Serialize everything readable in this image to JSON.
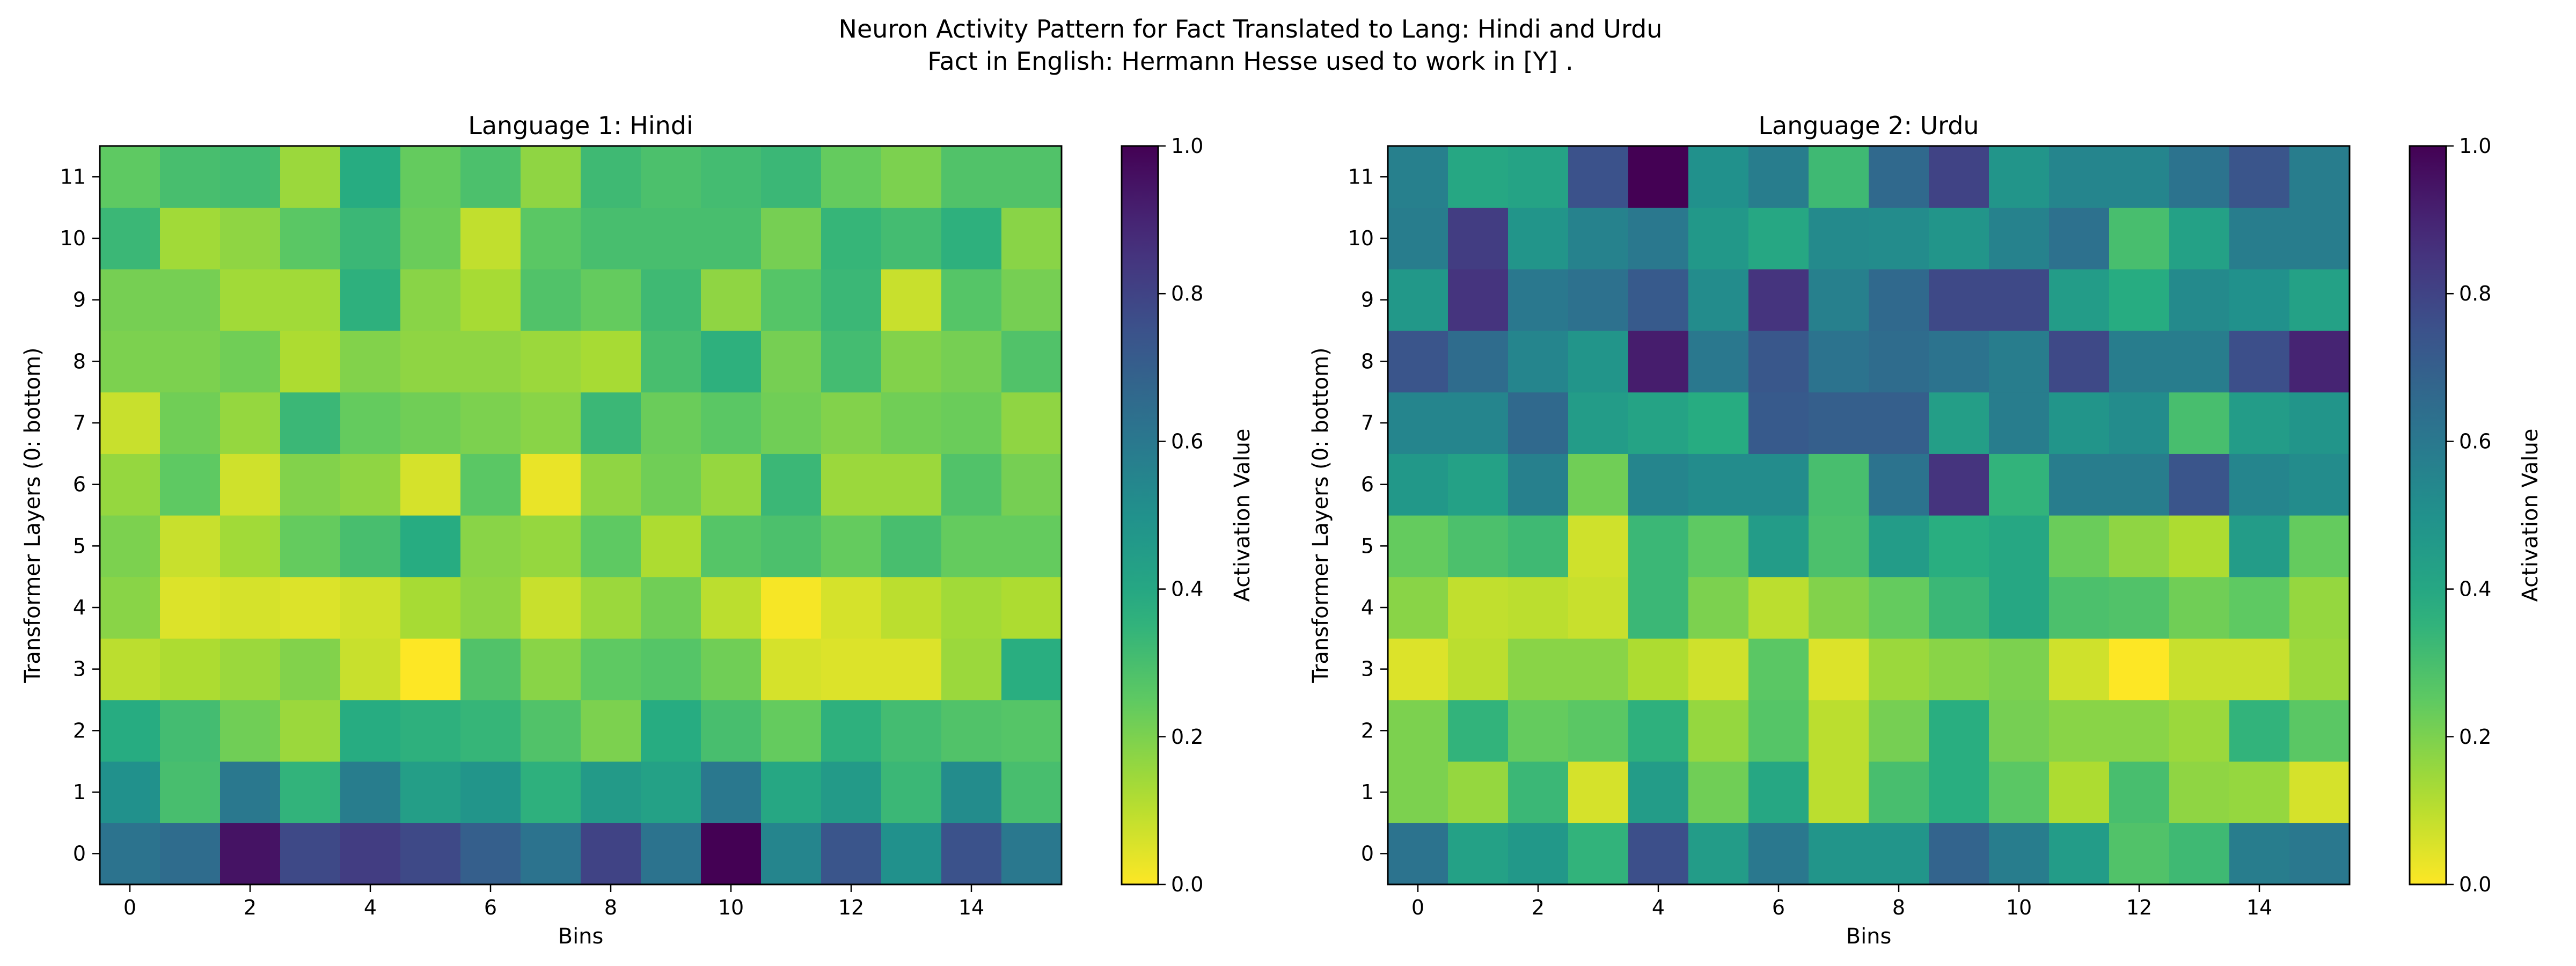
{
  "chart_data": {
    "type": "heatmap",
    "title": "Neuron Activity Pattern for Fact Translated to Lang: Hindi and Urdu",
    "subtitle": "Fact in English: Hermann Hesse used to work in [Y] .",
    "colormap": "viridis_r",
    "colorbar_label": "Activation Value",
    "colorbar_range": [
      0,
      1
    ],
    "colorbar_ticks": [
      "0.0",
      "0.2",
      "0.4",
      "0.6",
      "0.8",
      "1.0"
    ],
    "xlabel": "Bins",
    "ylabel": "Transformer Layers (0: bottom)",
    "x_ticks": [
      "0",
      "2",
      "4",
      "6",
      "8",
      "10",
      "12",
      "14"
    ],
    "y_ticks": [
      "0",
      "1",
      "2",
      "3",
      "4",
      "5",
      "6",
      "7",
      "8",
      "9",
      "10",
      "11"
    ],
    "panels": [
      {
        "title": "Language 1: Hindi",
        "values": [
          [
            0.62,
            0.65,
            0.95,
            0.78,
            0.82,
            0.78,
            0.7,
            0.62,
            0.8,
            0.62,
            1.0,
            0.55,
            0.74,
            0.5,
            0.75,
            0.6
          ],
          [
            0.5,
            0.3,
            0.6,
            0.35,
            0.58,
            0.44,
            0.48,
            0.36,
            0.46,
            0.43,
            0.6,
            0.4,
            0.46,
            0.33,
            0.52,
            0.3
          ],
          [
            0.38,
            0.31,
            0.22,
            0.15,
            0.38,
            0.36,
            0.34,
            0.28,
            0.2,
            0.38,
            0.3,
            0.24,
            0.36,
            0.31,
            0.28,
            0.27
          ],
          [
            0.1,
            0.12,
            0.15,
            0.19,
            0.08,
            0.0,
            0.28,
            0.18,
            0.25,
            0.27,
            0.22,
            0.06,
            0.05,
            0.05,
            0.15,
            0.37
          ],
          [
            0.18,
            0.05,
            0.06,
            0.05,
            0.07,
            0.13,
            0.17,
            0.08,
            0.15,
            0.22,
            0.1,
            0.01,
            0.06,
            0.1,
            0.14,
            0.12
          ],
          [
            0.2,
            0.08,
            0.14,
            0.24,
            0.3,
            0.38,
            0.18,
            0.16,
            0.25,
            0.12,
            0.27,
            0.29,
            0.24,
            0.3,
            0.24,
            0.24
          ],
          [
            0.16,
            0.25,
            0.07,
            0.19,
            0.17,
            0.06,
            0.26,
            0.03,
            0.17,
            0.22,
            0.16,
            0.33,
            0.15,
            0.15,
            0.28,
            0.21
          ],
          [
            0.08,
            0.22,
            0.16,
            0.33,
            0.24,
            0.22,
            0.2,
            0.18,
            0.33,
            0.23,
            0.26,
            0.22,
            0.19,
            0.22,
            0.23,
            0.17
          ],
          [
            0.2,
            0.2,
            0.22,
            0.12,
            0.19,
            0.17,
            0.17,
            0.15,
            0.13,
            0.3,
            0.36,
            0.21,
            0.31,
            0.19,
            0.21,
            0.28
          ],
          [
            0.21,
            0.21,
            0.14,
            0.14,
            0.36,
            0.18,
            0.13,
            0.28,
            0.24,
            0.32,
            0.17,
            0.27,
            0.33,
            0.08,
            0.27,
            0.21
          ],
          [
            0.33,
            0.14,
            0.17,
            0.26,
            0.33,
            0.23,
            0.09,
            0.26,
            0.3,
            0.3,
            0.3,
            0.21,
            0.34,
            0.31,
            0.36,
            0.18
          ],
          [
            0.25,
            0.3,
            0.31,
            0.15,
            0.38,
            0.24,
            0.29,
            0.17,
            0.32,
            0.29,
            0.31,
            0.33,
            0.24,
            0.2,
            0.28,
            0.28
          ]
        ]
      },
      {
        "title": "Language 2: Urdu",
        "values": [
          [
            0.62,
            0.43,
            0.47,
            0.35,
            0.76,
            0.45,
            0.6,
            0.48,
            0.48,
            0.68,
            0.58,
            0.45,
            0.28,
            0.32,
            0.58,
            0.6
          ],
          [
            0.2,
            0.16,
            0.33,
            0.06,
            0.45,
            0.22,
            0.4,
            0.1,
            0.3,
            0.37,
            0.26,
            0.12,
            0.3,
            0.17,
            0.16,
            0.06
          ],
          [
            0.2,
            0.35,
            0.24,
            0.26,
            0.36,
            0.16,
            0.27,
            0.1,
            0.21,
            0.37,
            0.21,
            0.18,
            0.18,
            0.15,
            0.35,
            0.26
          ],
          [
            0.05,
            0.1,
            0.18,
            0.18,
            0.12,
            0.07,
            0.26,
            0.05,
            0.15,
            0.18,
            0.2,
            0.07,
            0.0,
            0.08,
            0.08,
            0.15
          ],
          [
            0.18,
            0.09,
            0.1,
            0.08,
            0.33,
            0.2,
            0.1,
            0.19,
            0.24,
            0.33,
            0.4,
            0.29,
            0.28,
            0.22,
            0.25,
            0.16
          ],
          [
            0.24,
            0.29,
            0.32,
            0.07,
            0.33,
            0.25,
            0.45,
            0.29,
            0.45,
            0.37,
            0.4,
            0.23,
            0.17,
            0.12,
            0.45,
            0.24
          ],
          [
            0.47,
            0.43,
            0.57,
            0.22,
            0.55,
            0.52,
            0.52,
            0.3,
            0.62,
            0.85,
            0.35,
            0.58,
            0.58,
            0.74,
            0.55,
            0.52
          ],
          [
            0.55,
            0.55,
            0.66,
            0.45,
            0.42,
            0.38,
            0.72,
            0.7,
            0.7,
            0.44,
            0.58,
            0.48,
            0.52,
            0.3,
            0.45,
            0.48
          ],
          [
            0.74,
            0.65,
            0.55,
            0.48,
            0.92,
            0.6,
            0.73,
            0.62,
            0.65,
            0.62,
            0.58,
            0.78,
            0.58,
            0.58,
            0.76,
            0.9
          ],
          [
            0.47,
            0.85,
            0.6,
            0.63,
            0.72,
            0.52,
            0.85,
            0.57,
            0.66,
            0.78,
            0.78,
            0.45,
            0.38,
            0.53,
            0.5,
            0.43
          ],
          [
            0.58,
            0.82,
            0.48,
            0.56,
            0.6,
            0.47,
            0.4,
            0.53,
            0.52,
            0.48,
            0.56,
            0.63,
            0.3,
            0.43,
            0.58,
            0.58
          ],
          [
            0.57,
            0.4,
            0.42,
            0.75,
            1.0,
            0.5,
            0.58,
            0.32,
            0.66,
            0.8,
            0.48,
            0.55,
            0.55,
            0.62,
            0.74,
            0.58
          ]
        ]
      }
    ]
  }
}
